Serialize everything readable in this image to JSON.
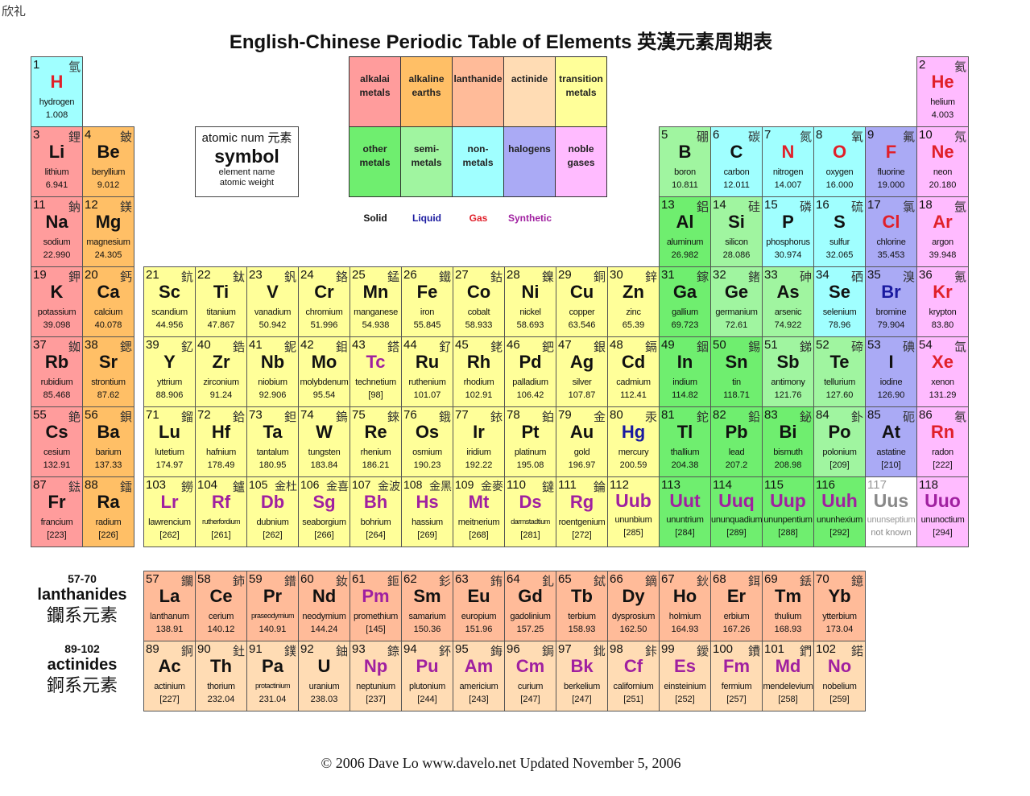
{
  "corner_text": "欣礼",
  "title": "English-Chinese Periodic Table of Elements 英漢元素周期表",
  "footer": "© 2006 Dave Lo   www.davelo.net   Updated November 5, 2006",
  "key": {
    "line1": "atomic num 元素",
    "line2": "symbol",
    "line3": "element name",
    "line4": "atomic weight"
  },
  "categories": [
    {
      "id": "am",
      "label": "alkalai metals",
      "color": "#ff9c9c"
    },
    {
      "id": "ae",
      "label": "alkaline earths",
      "color": "#ffbf66"
    },
    {
      "id": "la",
      "label": "lanthanide",
      "color": "#ffbb99"
    },
    {
      "id": "ac",
      "label": "actinide",
      "color": "#ffdcb4"
    },
    {
      "id": "tm",
      "label": "transition metals",
      "color": "#ffff99"
    },
    {
      "id": "om",
      "label": "other metals",
      "color": "#6fee6f"
    },
    {
      "id": "sm",
      "label": "semi-metals",
      "color": "#a0f5a0"
    },
    {
      "id": "nm",
      "label": "non-metals",
      "color": "#a0ffff"
    },
    {
      "id": "ha",
      "label": "halogens",
      "color": "#aaaaf5"
    },
    {
      "id": "ng",
      "label": "noble gases",
      "color": "#ffbbff"
    },
    {
      "id": "unk",
      "label": "",
      "color": "#ffffff"
    }
  ],
  "states": [
    {
      "id": "s",
      "label": "Solid",
      "color": "#111111"
    },
    {
      "id": "l",
      "label": "Liquid",
      "color": "#1a1aa0"
    },
    {
      "id": "g",
      "label": "Gas",
      "color": "#e0202a"
    },
    {
      "id": "x",
      "label": "Synthetic",
      "color": "#a020a0"
    },
    {
      "id": "u",
      "label": "",
      "color": "#888888"
    }
  ],
  "series_labels": {
    "lanthanides": {
      "range": "57-70",
      "name": "lanthanides",
      "zh": "鑭系元素"
    },
    "actinides": {
      "range": "89-102",
      "name": "actinides",
      "zh": "錒系元素"
    }
  },
  "elements": [
    {
      "n": 1,
      "s": "H",
      "name": "hydrogen",
      "w": "1.008",
      "zh": "氫",
      "cat": "nm",
      "st": "g"
    },
    {
      "n": 2,
      "s": "He",
      "name": "helium",
      "w": "4.003",
      "zh": "氦",
      "cat": "ng",
      "st": "g"
    },
    {
      "n": 3,
      "s": "Li",
      "name": "lithium",
      "w": "6.941",
      "zh": "鋰",
      "cat": "am",
      "st": "s"
    },
    {
      "n": 4,
      "s": "Be",
      "name": "beryllium",
      "w": "9.012",
      "zh": "鈹",
      "cat": "ae",
      "st": "s"
    },
    {
      "n": 5,
      "s": "B",
      "name": "boron",
      "w": "10.811",
      "zh": "硼",
      "cat": "sm",
      "st": "s"
    },
    {
      "n": 6,
      "s": "C",
      "name": "carbon",
      "w": "12.011",
      "zh": "碳",
      "cat": "nm",
      "st": "s"
    },
    {
      "n": 7,
      "s": "N",
      "name": "nitrogen",
      "w": "14.007",
      "zh": "氮",
      "cat": "nm",
      "st": "g"
    },
    {
      "n": 8,
      "s": "O",
      "name": "oxygen",
      "w": "16.000",
      "zh": "氧",
      "cat": "nm",
      "st": "g"
    },
    {
      "n": 9,
      "s": "F",
      "name": "fluorine",
      "w": "19.000",
      "zh": "氟",
      "cat": "ha",
      "st": "g"
    },
    {
      "n": 10,
      "s": "Ne",
      "name": "neon",
      "w": "20.180",
      "zh": "氖",
      "cat": "ng",
      "st": "g"
    },
    {
      "n": 11,
      "s": "Na",
      "name": "sodium",
      "w": "22.990",
      "zh": "鈉",
      "cat": "am",
      "st": "s"
    },
    {
      "n": 12,
      "s": "Mg",
      "name": "magnesium",
      "w": "24.305",
      "zh": "鎂",
      "cat": "ae",
      "st": "s"
    },
    {
      "n": 13,
      "s": "Al",
      "name": "aluminum",
      "w": "26.982",
      "zh": "鋁",
      "cat": "om",
      "st": "s"
    },
    {
      "n": 14,
      "s": "Si",
      "name": "silicon",
      "w": "28.086",
      "zh": "硅",
      "cat": "sm",
      "st": "s"
    },
    {
      "n": 15,
      "s": "P",
      "name": "phosphorus",
      "w": "30.974",
      "zh": "磷",
      "cat": "nm",
      "st": "s"
    },
    {
      "n": 16,
      "s": "S",
      "name": "sulfur",
      "w": "32.065",
      "zh": "硫",
      "cat": "nm",
      "st": "s"
    },
    {
      "n": 17,
      "s": "Cl",
      "name": "chlorine",
      "w": "35.453",
      "zh": "氯",
      "cat": "ha",
      "st": "g"
    },
    {
      "n": 18,
      "s": "Ar",
      "name": "argon",
      "w": "39.948",
      "zh": "氬",
      "cat": "ng",
      "st": "g"
    },
    {
      "n": 19,
      "s": "K",
      "name": "potassium",
      "w": "39.098",
      "zh": "鉀",
      "cat": "am",
      "st": "s"
    },
    {
      "n": 20,
      "s": "Ca",
      "name": "calcium",
      "w": "40.078",
      "zh": "鈣",
      "cat": "ae",
      "st": "s"
    },
    {
      "n": 21,
      "s": "Sc",
      "name": "scandium",
      "w": "44.956",
      "zh": "鈧",
      "cat": "tm",
      "st": "s"
    },
    {
      "n": 22,
      "s": "Ti",
      "name": "titanium",
      "w": "47.867",
      "zh": "鈦",
      "cat": "tm",
      "st": "s"
    },
    {
      "n": 23,
      "s": "V",
      "name": "vanadium",
      "w": "50.942",
      "zh": "釩",
      "cat": "tm",
      "st": "s"
    },
    {
      "n": 24,
      "s": "Cr",
      "name": "chromium",
      "w": "51.996",
      "zh": "鉻",
      "cat": "tm",
      "st": "s"
    },
    {
      "n": 25,
      "s": "Mn",
      "name": "manganese",
      "w": "54.938",
      "zh": "錳",
      "cat": "tm",
      "st": "s"
    },
    {
      "n": 26,
      "s": "Fe",
      "name": "iron",
      "w": "55.845",
      "zh": "鐵",
      "cat": "tm",
      "st": "s"
    },
    {
      "n": 27,
      "s": "Co",
      "name": "cobalt",
      "w": "58.933",
      "zh": "鈷",
      "cat": "tm",
      "st": "s"
    },
    {
      "n": 28,
      "s": "Ni",
      "name": "nickel",
      "w": "58.693",
      "zh": "鎳",
      "cat": "tm",
      "st": "s"
    },
    {
      "n": 29,
      "s": "Cu",
      "name": "copper",
      "w": "63.546",
      "zh": "銅",
      "cat": "tm",
      "st": "s"
    },
    {
      "n": 30,
      "s": "Zn",
      "name": "zinc",
      "w": "65.39",
      "zh": "鋅",
      "cat": "tm",
      "st": "s"
    },
    {
      "n": 31,
      "s": "Ga",
      "name": "gallium",
      "w": "69.723",
      "zh": "鎵",
      "cat": "om",
      "st": "s"
    },
    {
      "n": 32,
      "s": "Ge",
      "name": "germanium",
      "w": "72.61",
      "zh": "鍺",
      "cat": "sm",
      "st": "s"
    },
    {
      "n": 33,
      "s": "As",
      "name": "arsenic",
      "w": "74.922",
      "zh": "砷",
      "cat": "sm",
      "st": "s"
    },
    {
      "n": 34,
      "s": "Se",
      "name": "selenium",
      "w": "78.96",
      "zh": "硒",
      "cat": "nm",
      "st": "s"
    },
    {
      "n": 35,
      "s": "Br",
      "name": "bromine",
      "w": "79.904",
      "zh": "溴",
      "cat": "ha",
      "st": "l"
    },
    {
      "n": 36,
      "s": "Kr",
      "name": "krypton",
      "w": "83.80",
      "zh": "氪",
      "cat": "ng",
      "st": "g"
    },
    {
      "n": 37,
      "s": "Rb",
      "name": "rubidium",
      "w": "85.468",
      "zh": "銣",
      "cat": "am",
      "st": "s"
    },
    {
      "n": 38,
      "s": "Sr",
      "name": "strontium",
      "w": "87.62",
      "zh": "鍶",
      "cat": "ae",
      "st": "s"
    },
    {
      "n": 39,
      "s": "Y",
      "name": "yttrium",
      "w": "88.906",
      "zh": "釔",
      "cat": "tm",
      "st": "s"
    },
    {
      "n": 40,
      "s": "Zr",
      "name": "zirconium",
      "w": "91.24",
      "zh": "鋯",
      "cat": "tm",
      "st": "s"
    },
    {
      "n": 41,
      "s": "Nb",
      "name": "niobium",
      "w": "92.906",
      "zh": "鈮",
      "cat": "tm",
      "st": "s"
    },
    {
      "n": 42,
      "s": "Mo",
      "name": "molybdenum",
      "w": "95.54",
      "zh": "鉬",
      "cat": "tm",
      "st": "s"
    },
    {
      "n": 43,
      "s": "Tc",
      "name": "technetium",
      "w": "[98]",
      "zh": "鎝",
      "cat": "tm",
      "st": "x"
    },
    {
      "n": 44,
      "s": "Ru",
      "name": "ruthenium",
      "w": "101.07",
      "zh": "釕",
      "cat": "tm",
      "st": "s"
    },
    {
      "n": 45,
      "s": "Rh",
      "name": "rhodium",
      "w": "102.91",
      "zh": "銠",
      "cat": "tm",
      "st": "s"
    },
    {
      "n": 46,
      "s": "Pd",
      "name": "palladium",
      "w": "106.42",
      "zh": "鈀",
      "cat": "tm",
      "st": "s"
    },
    {
      "n": 47,
      "s": "Ag",
      "name": "silver",
      "w": "107.87",
      "zh": "銀",
      "cat": "tm",
      "st": "s"
    },
    {
      "n": 48,
      "s": "Cd",
      "name": "cadmium",
      "w": "112.41",
      "zh": "鎘",
      "cat": "tm",
      "st": "s"
    },
    {
      "n": 49,
      "s": "In",
      "name": "indium",
      "w": "114.82",
      "zh": "銦",
      "cat": "om",
      "st": "s"
    },
    {
      "n": 50,
      "s": "Sn",
      "name": "tin",
      "w": "118.71",
      "zh": "錫",
      "cat": "om",
      "st": "s"
    },
    {
      "n": 51,
      "s": "Sb",
      "name": "antimony",
      "w": "121.76",
      "zh": "銻",
      "cat": "sm",
      "st": "s"
    },
    {
      "n": 52,
      "s": "Te",
      "name": "tellurium",
      "w": "127.60",
      "zh": "碲",
      "cat": "sm",
      "st": "s"
    },
    {
      "n": 53,
      "s": "I",
      "name": "iodine",
      "w": "126.90",
      "zh": "碘",
      "cat": "ha",
      "st": "s"
    },
    {
      "n": 54,
      "s": "Xe",
      "name": "xenon",
      "w": "131.29",
      "zh": "氙",
      "cat": "ng",
      "st": "g"
    },
    {
      "n": 55,
      "s": "Cs",
      "name": "cesium",
      "w": "132.91",
      "zh": "銫",
      "cat": "am",
      "st": "s"
    },
    {
      "n": 56,
      "s": "Ba",
      "name": "barium",
      "w": "137.33",
      "zh": "鋇",
      "cat": "ae",
      "st": "s"
    },
    {
      "n": 57,
      "s": "La",
      "name": "lanthanum",
      "w": "138.91",
      "zh": "鑭",
      "cat": "la",
      "st": "s"
    },
    {
      "n": 58,
      "s": "Ce",
      "name": "cerium",
      "w": "140.12",
      "zh": "鈰",
      "cat": "la",
      "st": "s"
    },
    {
      "n": 59,
      "s": "Pr",
      "name": "praseodymium",
      "w": "140.91",
      "zh": "鐠",
      "cat": "la",
      "st": "s"
    },
    {
      "n": 60,
      "s": "Nd",
      "name": "neodymium",
      "w": "144.24",
      "zh": "釹",
      "cat": "la",
      "st": "s"
    },
    {
      "n": 61,
      "s": "Pm",
      "name": "promethium",
      "w": "[145]",
      "zh": "鉕",
      "cat": "la",
      "st": "x"
    },
    {
      "n": 62,
      "s": "Sm",
      "name": "samarium",
      "w": "150.36",
      "zh": "釤",
      "cat": "la",
      "st": "s"
    },
    {
      "n": 63,
      "s": "Eu",
      "name": "europium",
      "w": "151.96",
      "zh": "銪",
      "cat": "la",
      "st": "s"
    },
    {
      "n": 64,
      "s": "Gd",
      "name": "gadolinium",
      "w": "157.25",
      "zh": "釓",
      "cat": "la",
      "st": "s"
    },
    {
      "n": 65,
      "s": "Tb",
      "name": "terbium",
      "w": "158.93",
      "zh": "鋱",
      "cat": "la",
      "st": "s"
    },
    {
      "n": 66,
      "s": "Dy",
      "name": "dysprosium",
      "w": "162.50",
      "zh": "鏑",
      "cat": "la",
      "st": "s"
    },
    {
      "n": 67,
      "s": "Ho",
      "name": "holmium",
      "w": "164.93",
      "zh": "鈥",
      "cat": "la",
      "st": "s"
    },
    {
      "n": 68,
      "s": "Er",
      "name": "erbium",
      "w": "167.26",
      "zh": "鉺",
      "cat": "la",
      "st": "s"
    },
    {
      "n": 69,
      "s": "Tm",
      "name": "thulium",
      "w": "168.93",
      "zh": "銩",
      "cat": "la",
      "st": "s"
    },
    {
      "n": 70,
      "s": "Yb",
      "name": "ytterbium",
      "w": "173.04",
      "zh": "鐿",
      "cat": "la",
      "st": "s"
    },
    {
      "n": 71,
      "s": "Lu",
      "name": "lutetium",
      "w": "174.97",
      "zh": "鎦",
      "cat": "tm",
      "st": "s"
    },
    {
      "n": 72,
      "s": "Hf",
      "name": "hafnium",
      "w": "178.49",
      "zh": "鉿",
      "cat": "tm",
      "st": "s"
    },
    {
      "n": 73,
      "s": "Ta",
      "name": "tantalum",
      "w": "180.95",
      "zh": "鉭",
      "cat": "tm",
      "st": "s"
    },
    {
      "n": 74,
      "s": "W",
      "name": "tungsten",
      "w": "183.84",
      "zh": "鎢",
      "cat": "tm",
      "st": "s"
    },
    {
      "n": 75,
      "s": "Re",
      "name": "rhenium",
      "w": "186.21",
      "zh": "錸",
      "cat": "tm",
      "st": "s"
    },
    {
      "n": 76,
      "s": "Os",
      "name": "osmium",
      "w": "190.23",
      "zh": "鋨",
      "cat": "tm",
      "st": "s"
    },
    {
      "n": 77,
      "s": "Ir",
      "name": "iridium",
      "w": "192.22",
      "zh": "銥",
      "cat": "tm",
      "st": "s"
    },
    {
      "n": 78,
      "s": "Pt",
      "name": "platinum",
      "w": "195.08",
      "zh": "鉑",
      "cat": "tm",
      "st": "s"
    },
    {
      "n": 79,
      "s": "Au",
      "name": "gold",
      "w": "196.97",
      "zh": "金",
      "cat": "tm",
      "st": "s"
    },
    {
      "n": 80,
      "s": "Hg",
      "name": "mercury",
      "w": "200.59",
      "zh": "汞",
      "cat": "tm",
      "st": "l"
    },
    {
      "n": 81,
      "s": "Tl",
      "name": "thallium",
      "w": "204.38",
      "zh": "鉈",
      "cat": "om",
      "st": "s"
    },
    {
      "n": 82,
      "s": "Pb",
      "name": "lead",
      "w": "207.2",
      "zh": "鉛",
      "cat": "om",
      "st": "s"
    },
    {
      "n": 83,
      "s": "Bi",
      "name": "bismuth",
      "w": "208.98",
      "zh": "鉍",
      "cat": "om",
      "st": "s"
    },
    {
      "n": 84,
      "s": "Po",
      "name": "polonium",
      "w": "[209]",
      "zh": "釙",
      "cat": "sm",
      "st": "s"
    },
    {
      "n": 85,
      "s": "At",
      "name": "astatine",
      "w": "[210]",
      "zh": "砈",
      "cat": "ha",
      "st": "s"
    },
    {
      "n": 86,
      "s": "Rn",
      "name": "radon",
      "w": "[222]",
      "zh": "氡",
      "cat": "ng",
      "st": "g"
    },
    {
      "n": 87,
      "s": "Fr",
      "name": "francium",
      "w": "[223]",
      "zh": "鍅",
      "cat": "am",
      "st": "s"
    },
    {
      "n": 88,
      "s": "Ra",
      "name": "radium",
      "w": "[226]",
      "zh": "鐳",
      "cat": "ae",
      "st": "s"
    },
    {
      "n": 89,
      "s": "Ac",
      "name": "actinium",
      "w": "[227]",
      "zh": "錒",
      "cat": "ac",
      "st": "s"
    },
    {
      "n": 90,
      "s": "Th",
      "name": "thorium",
      "w": "232.04",
      "zh": "釷",
      "cat": "ac",
      "st": "s"
    },
    {
      "n": 91,
      "s": "Pa",
      "name": "protactinium",
      "w": "231.04",
      "zh": "鏷",
      "cat": "ac",
      "st": "s"
    },
    {
      "n": 92,
      "s": "U",
      "name": "uranium",
      "w": "238.03",
      "zh": "鈾",
      "cat": "ac",
      "st": "s"
    },
    {
      "n": 93,
      "s": "Np",
      "name": "neptunium",
      "w": "[237]",
      "zh": "錼",
      "cat": "ac",
      "st": "x"
    },
    {
      "n": 94,
      "s": "Pu",
      "name": "plutonium",
      "w": "[244]",
      "zh": "鈈",
      "cat": "ac",
      "st": "x"
    },
    {
      "n": 95,
      "s": "Am",
      "name": "americium",
      "w": "[243]",
      "zh": "鋂",
      "cat": "ac",
      "st": "x"
    },
    {
      "n": 96,
      "s": "Cm",
      "name": "curium",
      "w": "[247]",
      "zh": "鋦",
      "cat": "ac",
      "st": "x"
    },
    {
      "n": 97,
      "s": "Bk",
      "name": "berkelium",
      "w": "[247]",
      "zh": "鉳",
      "cat": "ac",
      "st": "x"
    },
    {
      "n": 98,
      "s": "Cf",
      "name": "californium",
      "w": "[251]",
      "zh": "鉲",
      "cat": "ac",
      "st": "x"
    },
    {
      "n": 99,
      "s": "Es",
      "name": "einsteinium",
      "w": "[252]",
      "zh": "鑀",
      "cat": "ac",
      "st": "x"
    },
    {
      "n": 100,
      "s": "Fm",
      "name": "fermium",
      "w": "[257]",
      "zh": "鐨",
      "cat": "ac",
      "st": "x"
    },
    {
      "n": 101,
      "s": "Md",
      "name": "mendelevium",
      "w": "[258]",
      "zh": "鍆",
      "cat": "ac",
      "st": "x"
    },
    {
      "n": 102,
      "s": "No",
      "name": "nobelium",
      "w": "[259]",
      "zh": "鍩",
      "cat": "ac",
      "st": "x"
    },
    {
      "n": 103,
      "s": "Lr",
      "name": "lawrencium",
      "w": "[262]",
      "zh": "鐒",
      "cat": "tm",
      "st": "x"
    },
    {
      "n": 104,
      "s": "Rf",
      "name": "rutherfordium",
      "w": "[261]",
      "zh": "鑪",
      "cat": "tm",
      "st": "x"
    },
    {
      "n": 105,
      "s": "Db",
      "name": "dubnium",
      "w": "[262]",
      "zh": "金杜",
      "cat": "tm",
      "st": "x"
    },
    {
      "n": 106,
      "s": "Sg",
      "name": "seaborgium",
      "w": "[266]",
      "zh": "金喜",
      "cat": "tm",
      "st": "x"
    },
    {
      "n": 107,
      "s": "Bh",
      "name": "bohrium",
      "w": "[264]",
      "zh": "金波",
      "cat": "tm",
      "st": "x"
    },
    {
      "n": 108,
      "s": "Hs",
      "name": "hassium",
      "w": "[269]",
      "zh": "金黑",
      "cat": "tm",
      "st": "x"
    },
    {
      "n": 109,
      "s": "Mt",
      "name": "meitnerium",
      "w": "[268]",
      "zh": "金麥",
      "cat": "tm",
      "st": "x"
    },
    {
      "n": 110,
      "s": "Ds",
      "name": "darmstadtium",
      "w": "[281]",
      "zh": "鐽",
      "cat": "tm",
      "st": "x"
    },
    {
      "n": 111,
      "s": "Rg",
      "name": "roentgenium",
      "w": "[272]",
      "zh": "錀",
      "cat": "tm",
      "st": "x"
    },
    {
      "n": 112,
      "s": "Uub",
      "name": "ununbium",
      "w": "[285]",
      "zh": "",
      "cat": "tm",
      "st": "x"
    },
    {
      "n": 113,
      "s": "Uut",
      "name": "ununtrium",
      "w": "[284]",
      "zh": "",
      "cat": "om",
      "st": "x"
    },
    {
      "n": 114,
      "s": "Uuq",
      "name": "ununquadium",
      "w": "[289]",
      "zh": "",
      "cat": "om",
      "st": "x"
    },
    {
      "n": 115,
      "s": "Uup",
      "name": "ununpentium",
      "w": "[288]",
      "zh": "",
      "cat": "om",
      "st": "x"
    },
    {
      "n": 116,
      "s": "Uuh",
      "name": "ununhexium",
      "w": "[292]",
      "zh": "",
      "cat": "om",
      "st": "x"
    },
    {
      "n": 117,
      "s": "Uus",
      "name": "ununseptium",
      "w": "not known",
      "zh": "",
      "cat": "unk",
      "st": "u"
    },
    {
      "n": 118,
      "s": "Uuo",
      "name": "ununoctium",
      "w": "[294]",
      "zh": "",
      "cat": "ng",
      "st": "x"
    }
  ]
}
